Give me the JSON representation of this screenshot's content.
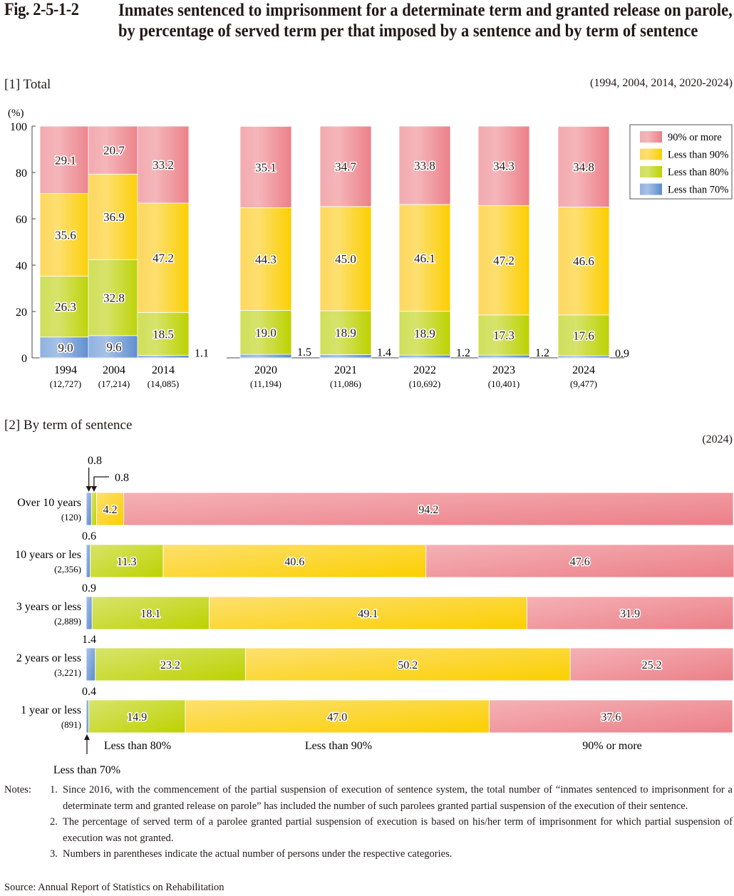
{
  "figure": {
    "number": "Fig. 2-5-1-2",
    "title": "Inmates sentenced to imprisonment for a determinate term and granted release on parole, by percentage of served term per that imposed by a sentence and by term of sentence"
  },
  "colors": {
    "pink": "#ee8790",
    "yellow": "#fcd200",
    "green": "#bfd400",
    "blue": "#5f90d0"
  },
  "chart_data": [
    {
      "type": "bar",
      "stacked": true,
      "orientation": "vertical",
      "section_title": "[1] Total",
      "period_note": "(1994, 2004, 2014, 2020-2024)",
      "ylabel": "(%)",
      "ylim": [
        0,
        100
      ],
      "yticks": [
        "0",
        "20",
        "40",
        "60",
        "80",
        "100"
      ],
      "categories": [
        "1994",
        "2004",
        "2014",
        "2020",
        "2021",
        "2022",
        "2023",
        "2024"
      ],
      "counts": [
        "(12,727)",
        "(17,214)",
        "(14,085)",
        "(11,194)",
        "(11,086)",
        "(10,692)",
        "(10,401)",
        "(9,477)"
      ],
      "series": [
        {
          "name": "Less than 70%",
          "color_key": "blue",
          "values": [
            9.0,
            9.6,
            1.1,
            1.5,
            1.4,
            1.2,
            1.2,
            0.9
          ]
        },
        {
          "name": "Less than 80%",
          "color_key": "green",
          "values": [
            26.3,
            32.8,
            18.5,
            19.0,
            18.9,
            18.9,
            17.3,
            17.6
          ]
        },
        {
          "name": "Less than 90%",
          "color_key": "yellow",
          "values": [
            35.6,
            36.9,
            47.2,
            44.3,
            45.0,
            46.1,
            47.2,
            46.6
          ]
        },
        {
          "name": "90% or more",
          "color_key": "pink",
          "values": [
            29.1,
            20.7,
            33.2,
            35.1,
            34.7,
            33.8,
            34.3,
            34.8
          ]
        }
      ],
      "legend": {
        "placement": "top-right",
        "items": [
          {
            "label": "90% or more",
            "color_key": "pink"
          },
          {
            "label": "Less than 90%",
            "color_key": "yellow"
          },
          {
            "label": "Less than 80%",
            "color_key": "green"
          },
          {
            "label": "Less than 70%",
            "color_key": "blue"
          }
        ]
      },
      "grid": false
    },
    {
      "type": "bar",
      "stacked": true,
      "orientation": "horizontal",
      "section_title": "[2] By term of sentence",
      "period_note": "(2024)",
      "xlim": [
        0,
        100
      ],
      "categories": [
        "Over 10 years",
        "10 years or les",
        "3 years or less",
        "2 years or less",
        "1 year or less"
      ],
      "counts": [
        "(120)",
        "(2,356)",
        "(2,889)",
        "(3,221)",
        "(891)"
      ],
      "series": [
        {
          "name": "Less than 70%",
          "color_key": "blue",
          "values": [
            0.8,
            0.6,
            0.9,
            1.4,
            0.4
          ]
        },
        {
          "name": "Less than 80%",
          "color_key": "green",
          "values": [
            0.8,
            11.3,
            18.1,
            23.2,
            14.9
          ]
        },
        {
          "name": "Less than 90%",
          "color_key": "yellow",
          "values": [
            4.2,
            40.6,
            49.1,
            50.2,
            47.0
          ]
        },
        {
          "name": "90% or more",
          "color_key": "pink",
          "values": [
            94.2,
            47.6,
            31.9,
            25.2,
            37.6
          ]
        }
      ],
      "bottom_labels": {
        "less_than_70": "Less than 70%",
        "less_than_80": "Less than 80%",
        "less_than_90": "Less than 90%",
        "ninety_or_more": "90% or more"
      },
      "grid": false
    }
  ],
  "notes": {
    "lead": "Notes:",
    "items": [
      {
        "num": "1.",
        "text": "Since 2016, with the commencement of the partial suspension of execution of sentence system, the total number of “inmates sentenced to imprisonment for a determinate term and granted release on parole” has included the number of such parolees granted partial suspension of the execution of their sentence."
      },
      {
        "num": "2.",
        "text": "The percentage of served term of a parolee granted partial suspension of execution is based on his/her term of imprisonment for which partial suspension of execution was not granted."
      },
      {
        "num": "3.",
        "text": "Numbers in parentheses indicate the actual number of persons under the respective categories."
      }
    ]
  },
  "source": "Source: Annual Report of Statistics on Rehabilitation"
}
